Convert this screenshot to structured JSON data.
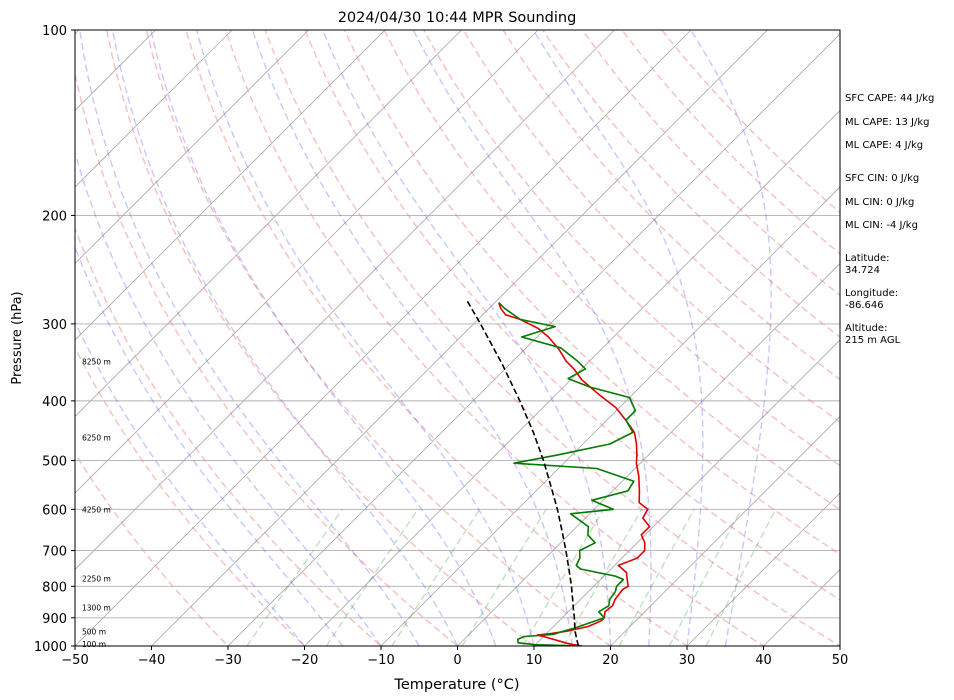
{
  "chart_data": {
    "type": "line",
    "title": "2024/04/30 10:44 MPR Sounding",
    "xlabel": "Temperature (°C)",
    "ylabel": "Pressure (hPa)",
    "xlim": [
      -50,
      50
    ],
    "ylim": [
      1000,
      100
    ],
    "y_scale": "log",
    "x_ticks": [
      "−50",
      "−40",
      "−30",
      "−20",
      "−10",
      "0",
      "10",
      "20",
      "30",
      "40",
      "50"
    ],
    "y_ticks": [
      "100",
      "200",
      "300",
      "400",
      "500",
      "600",
      "700",
      "800",
      "900",
      "1000"
    ],
    "height_labels": [
      {
        "label": "100 m",
        "p": 992
      },
      {
        "label": "500 m",
        "p": 948
      },
      {
        "label": "1300 m",
        "p": 866
      },
      {
        "label": "2250 m",
        "p": 777
      },
      {
        "label": "4250 m",
        "p": 600
      },
      {
        "label": "6250 m",
        "p": 459
      },
      {
        "label": "8250 m",
        "p": 345
      }
    ],
    "series": [
      {
        "role": "temperature",
        "color": "#e00000",
        "points": [
          [
            1000,
            16.3
          ],
          [
            995,
            15.0
          ],
          [
            990,
            14.0
          ],
          [
            965,
            10.0
          ],
          [
            960,
            9.0
          ],
          [
            955,
            10.5
          ],
          [
            945,
            12.5
          ],
          [
            930,
            14.5
          ],
          [
            910,
            15.5
          ],
          [
            900,
            15.5
          ],
          [
            880,
            14.8
          ],
          [
            860,
            15.0
          ],
          [
            840,
            14.5
          ],
          [
            810,
            14.2
          ],
          [
            800,
            14.5
          ],
          [
            780,
            13.5
          ],
          [
            760,
            12.5
          ],
          [
            740,
            10.5
          ],
          [
            720,
            12.0
          ],
          [
            700,
            12.0
          ],
          [
            680,
            11.0
          ],
          [
            660,
            9.5
          ],
          [
            640,
            9.5
          ],
          [
            620,
            7.5
          ],
          [
            600,
            7.0
          ],
          [
            585,
            5.0
          ],
          [
            560,
            3.5
          ],
          [
            530,
            1.5
          ],
          [
            505,
            -0.5
          ],
          [
            490,
            -1.5
          ],
          [
            470,
            -3.0
          ],
          [
            450,
            -4.8
          ],
          [
            430,
            -7.5
          ],
          [
            410,
            -10.5
          ],
          [
            390,
            -14.5
          ],
          [
            370,
            -18.5
          ],
          [
            355,
            -21.0
          ],
          [
            345,
            -23.0
          ],
          [
            330,
            -25.5
          ],
          [
            315,
            -28.5
          ],
          [
            305,
            -31.0
          ],
          [
            295,
            -34.5
          ],
          [
            290,
            -37.0
          ],
          [
            283,
            -38.5
          ],
          [
            277,
            -39.5
          ]
        ]
      },
      {
        "role": "dewpoint",
        "color": "#007a00",
        "points": [
          [
            1000,
            16.3
          ],
          [
            995,
            10.0
          ],
          [
            988,
            7.5
          ],
          [
            975,
            7.0
          ],
          [
            965,
            7.5
          ],
          [
            958,
            11.0
          ],
          [
            945,
            12.0
          ],
          [
            935,
            13.0
          ],
          [
            900,
            15.5
          ],
          [
            880,
            14.0
          ],
          [
            860,
            14.5
          ],
          [
            840,
            13.8
          ],
          [
            815,
            13.5
          ],
          [
            800,
            13.0
          ],
          [
            780,
            13.0
          ],
          [
            770,
            11.5
          ],
          [
            750,
            6.0
          ],
          [
            740,
            5.0
          ],
          [
            720,
            4.5
          ],
          [
            700,
            3.5
          ],
          [
            680,
            4.5
          ],
          [
            660,
            2.5
          ],
          [
            640,
            1.5
          ],
          [
            610,
            -2.5
          ],
          [
            600,
            2.5
          ],
          [
            580,
            -1.5
          ],
          [
            560,
            2.0
          ],
          [
            540,
            1.5
          ],
          [
            515,
            -5.0
          ],
          [
            505,
            -16.5
          ],
          [
            490,
            -12.0
          ],
          [
            470,
            -6.5
          ],
          [
            450,
            -5.0
          ],
          [
            430,
            -7.5
          ],
          [
            415,
            -7.5
          ],
          [
            395,
            -10.0
          ],
          [
            380,
            -16.5
          ],
          [
            368,
            -20.5
          ],
          [
            355,
            -19.5
          ],
          [
            345,
            -21.5
          ],
          [
            328,
            -25.5
          ],
          [
            315,
            -32.0
          ],
          [
            303,
            -29.0
          ],
          [
            295,
            -34.5
          ],
          [
            283,
            -38.0
          ],
          [
            277,
            -39.5
          ]
        ]
      },
      {
        "role": "parcel",
        "color": "#000000",
        "style": "dashed",
        "points": [
          [
            1000,
            15.8
          ],
          [
            975,
            14.7
          ],
          [
            950,
            13.6
          ],
          [
            925,
            12.6
          ],
          [
            900,
            11.6
          ],
          [
            875,
            10.5
          ],
          [
            850,
            9.4
          ],
          [
            800,
            7.1
          ],
          [
            750,
            4.5
          ],
          [
            700,
            1.7
          ],
          [
            650,
            -1.4
          ],
          [
            600,
            -4.8
          ],
          [
            550,
            -8.7
          ],
          [
            500,
            -13.0
          ],
          [
            450,
            -18.0
          ],
          [
            400,
            -23.9
          ],
          [
            350,
            -30.8
          ],
          [
            300,
            -39.1
          ],
          [
            275,
            -43.9
          ]
        ]
      }
    ],
    "background_lines": {
      "isotherms_every": 10,
      "dry_adiabats_theta_C": [
        -30,
        -20,
        -10,
        0,
        10,
        20,
        30,
        40,
        50,
        60,
        70,
        80,
        90,
        100,
        110,
        120,
        130,
        140,
        150
      ],
      "moist_adiabats_T_C": [
        -20,
        -15,
        -10,
        -5,
        0,
        5,
        10,
        15,
        20,
        25,
        30,
        35
      ],
      "mixing_ratio_lines_g_per_kg": [
        0.4,
        1,
        2,
        4,
        7,
        10,
        16,
        24,
        32
      ]
    },
    "grid": true
  },
  "annotations": {
    "sfc_cape": "SFC CAPE: 44 J/kg",
    "ml_cape_1": "ML CAPE: 13 J/kg",
    "ml_cape_2": "ML CAPE: 4 J/kg",
    "sfc_cin": "SFC CIN: 0 J/kg",
    "ml_cin_1": "ML CIN: 0 J/kg",
    "ml_cin_2": "ML CIN: -4 J/kg",
    "latitude_label": "Latitude:",
    "latitude_value": "34.724",
    "longitude_label": "Longitude:",
    "longitude_value": "-86.646",
    "altitude_label": "Altitude:",
    "altitude_value": "215 m AGL"
  }
}
